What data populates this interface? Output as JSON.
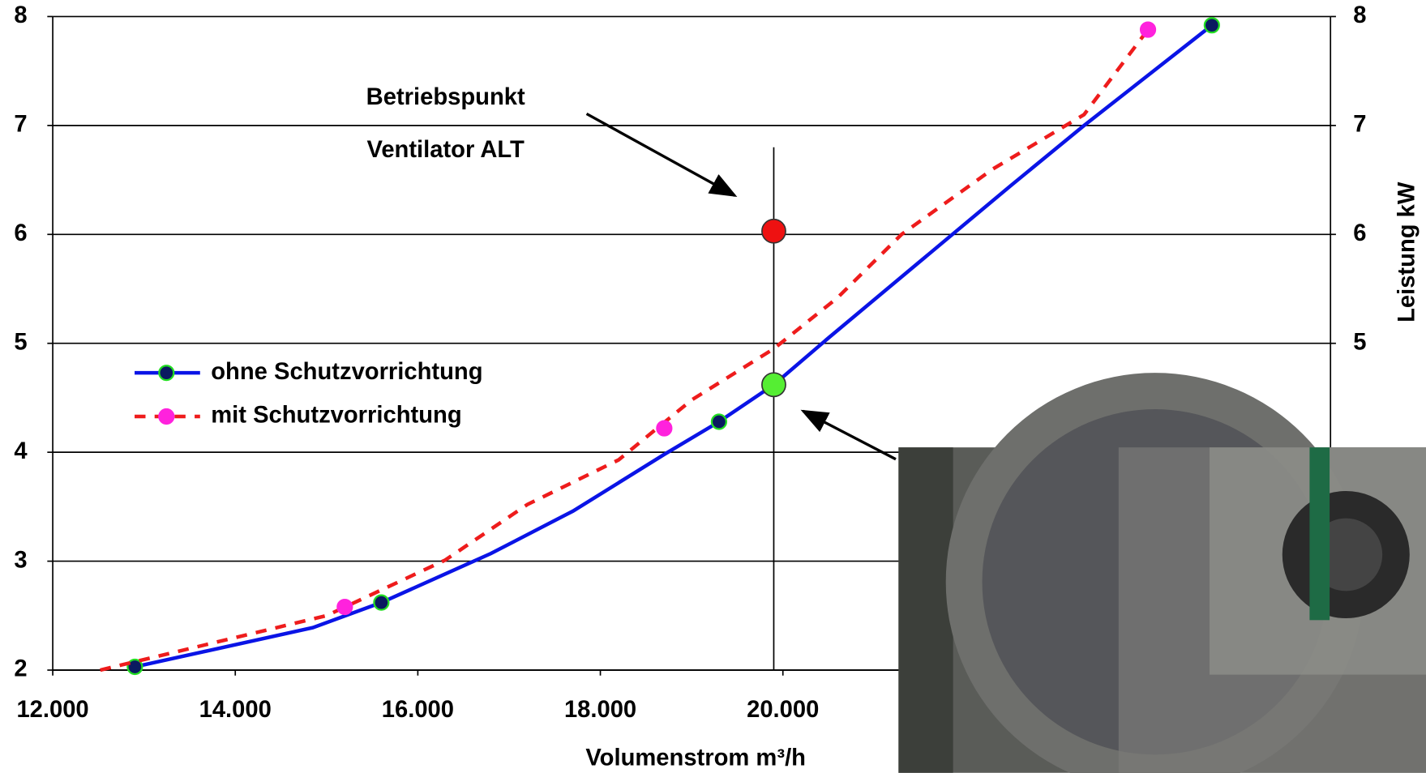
{
  "chart_data": {
    "type": "line",
    "xlabel": "Volumenstrom m³/h",
    "y2label": "Leistung kW",
    "xlim": [
      12000,
      26000
    ],
    "xticks": [
      {
        "value": 12000,
        "label": "12.000"
      },
      {
        "value": 14000,
        "label": "14.000"
      },
      {
        "value": 16000,
        "label": "16.000"
      },
      {
        "value": 18000,
        "label": "18.000"
      },
      {
        "value": 20000,
        "label": "20.000"
      }
    ],
    "ylim": [
      2,
      8
    ],
    "yticks": [
      2,
      3,
      4,
      5,
      6,
      7,
      8
    ],
    "y2lim": [
      2,
      8
    ],
    "y2ticks": [
      5,
      6,
      7,
      8
    ],
    "grid": true,
    "series": [
      {
        "name": "ohne Schutzvorrichtung",
        "color": "#0a14e6",
        "dash": false,
        "marker_color": "#0a1a60",
        "x": [
          12900,
          14850,
          15600,
          16400,
          16800,
          17700,
          18700,
          19300,
          19900,
          20500,
          21500,
          22500,
          23300,
          24700
        ],
        "values": [
          2.03,
          2.39,
          2.62,
          2.92,
          3.07,
          3.46,
          3.98,
          4.28,
          4.62,
          5.05,
          5.75,
          6.45,
          7.0,
          7.92
        ],
        "marker_x": [
          12900,
          15600,
          19300,
          24700
        ],
        "marker_values": [
          2.03,
          2.62,
          4.28,
          7.92
        ]
      },
      {
        "name": "mit Schutzvorrichtung",
        "color": "#ee1c1c",
        "dash": true,
        "marker_color": "#ff22dd",
        "x": [
          12520,
          15000,
          16300,
          17200,
          18200,
          19000,
          19900,
          20600,
          21300,
          22300,
          23300,
          24000
        ],
        "values": [
          2.0,
          2.5,
          3.01,
          3.52,
          3.93,
          4.48,
          4.95,
          5.42,
          6.0,
          6.6,
          7.1,
          7.88
        ],
        "marker_x": [
          15200,
          18700,
          24000
        ],
        "marker_values": [
          2.58,
          4.22,
          7.88
        ]
      }
    ],
    "operating_points": [
      {
        "x": 19900,
        "y": 6.03,
        "color": "#ee1111"
      },
      {
        "x": 19900,
        "y": 4.62,
        "color": "#55ee33"
      }
    ],
    "operating_line": {
      "x": 19900,
      "y": [
        2,
        6.8
      ]
    },
    "annotations": [
      "Betriebspunkt",
      "Ventilator ALT"
    ]
  }
}
